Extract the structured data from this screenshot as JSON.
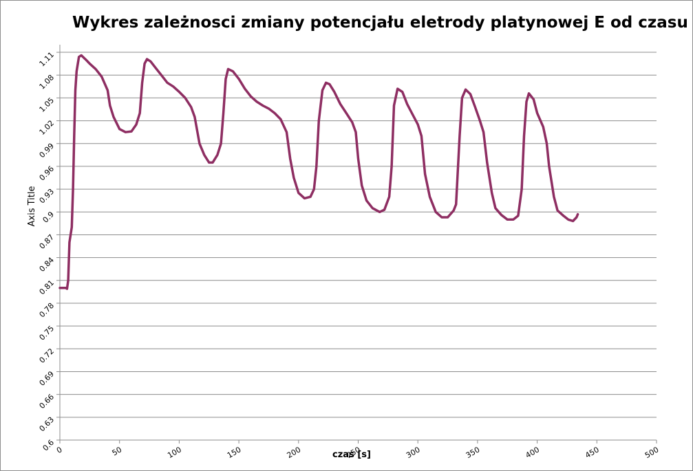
{
  "chart_data": {
    "type": "line",
    "title": "Wykres zależnosci zmiany potencjału eletrody platynowej E od czasu",
    "xlabel": "czas [s]",
    "ylabel": "Axis Title",
    "xlim": [
      0,
      500
    ],
    "xticks": [
      0,
      50,
      100,
      150,
      200,
      250,
      300,
      350,
      400,
      450,
      500
    ],
    "ylim": [
      0.6,
      1.12
    ],
    "yticks": [
      0.6,
      0.63,
      0.66,
      0.69,
      0.72,
      0.75,
      0.78,
      0.81,
      0.84,
      0.87,
      0.9,
      0.93,
      0.96,
      0.99,
      1.02,
      1.05,
      1.08,
      1.11
    ],
    "grid": true,
    "series": [
      {
        "color": "#8e2e62",
        "x": [
          0,
          5,
          6,
          7,
          8,
          10,
          11,
          12,
          13,
          14,
          16,
          18,
          22,
          25,
          30,
          35,
          40,
          42,
          45,
          50,
          55,
          60,
          64,
          67,
          69,
          71,
          73,
          76,
          80,
          85,
          90,
          95,
          100,
          105,
          110,
          113,
          117,
          121,
          125,
          128,
          132,
          135,
          137,
          139,
          141,
          145,
          150,
          155,
          160,
          165,
          170,
          175,
          180,
          185,
          190,
          193,
          196,
          200,
          205,
          210,
          213,
          215,
          217,
          220,
          223,
          226,
          230,
          235,
          240,
          245,
          248,
          250,
          253,
          257,
          262,
          268,
          272,
          276,
          278,
          280,
          283,
          287,
          291,
          295,
          300,
          303,
          306,
          310,
          315,
          320,
          325,
          330,
          332,
          335,
          337,
          340,
          344,
          348,
          352,
          355,
          358,
          362,
          365,
          370,
          375,
          380,
          384,
          387,
          389,
          391,
          393,
          397,
          400,
          405,
          408,
          410,
          414,
          417,
          422,
          426,
          430,
          433,
          434
        ],
        "values": [
          0.8,
          0.8,
          0.799,
          0.81,
          0.86,
          0.88,
          0.93,
          1.0,
          1.06,
          1.085,
          1.104,
          1.106,
          1.1,
          1.095,
          1.088,
          1.078,
          1.06,
          1.04,
          1.025,
          1.009,
          1.005,
          1.006,
          1.015,
          1.03,
          1.07,
          1.095,
          1.101,
          1.098,
          1.09,
          1.08,
          1.07,
          1.065,
          1.058,
          1.05,
          1.038,
          1.025,
          0.99,
          0.975,
          0.965,
          0.965,
          0.975,
          0.99,
          1.03,
          1.075,
          1.088,
          1.085,
          1.075,
          1.062,
          1.052,
          1.045,
          1.04,
          1.036,
          1.03,
          1.022,
          1.005,
          0.97,
          0.945,
          0.925,
          0.918,
          0.92,
          0.93,
          0.96,
          1.02,
          1.06,
          1.07,
          1.068,
          1.058,
          1.042,
          1.03,
          1.018,
          1.005,
          0.97,
          0.935,
          0.915,
          0.905,
          0.9,
          0.903,
          0.92,
          0.96,
          1.04,
          1.062,
          1.058,
          1.042,
          1.03,
          1.015,
          1.0,
          0.95,
          0.92,
          0.9,
          0.893,
          0.893,
          0.902,
          0.91,
          1.0,
          1.05,
          1.061,
          1.055,
          1.038,
          1.02,
          1.005,
          0.965,
          0.925,
          0.905,
          0.896,
          0.89,
          0.89,
          0.895,
          0.93,
          1.0,
          1.045,
          1.056,
          1.048,
          1.03,
          1.012,
          0.99,
          0.96,
          0.92,
          0.902,
          0.895,
          0.89,
          0.888,
          0.893,
          0.897
        ]
      }
    ]
  }
}
